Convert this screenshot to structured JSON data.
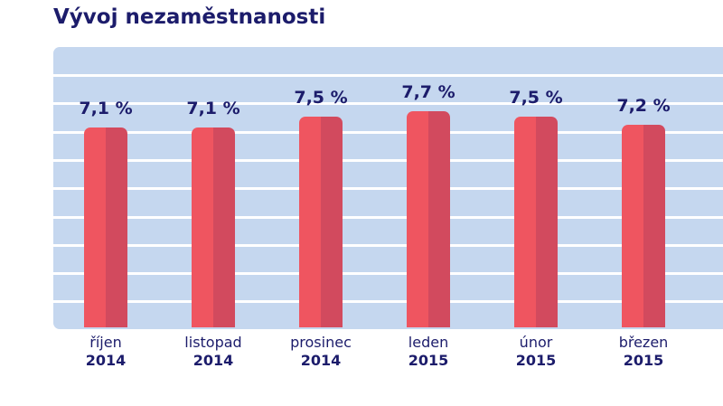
{
  "chart_data": {
    "type": "bar",
    "title": "Vývoj nezaměstnanosti",
    "categories": [
      {
        "month": "říjen",
        "year": "2014"
      },
      {
        "month": "listopad",
        "year": "2014"
      },
      {
        "month": "prosinec",
        "year": "2014"
      },
      {
        "month": "leden",
        "year": "2015"
      },
      {
        "month": "únor",
        "year": "2015"
      },
      {
        "month": "březen",
        "year": "2015"
      }
    ],
    "values": [
      7.1,
      7.1,
      7.5,
      7.7,
      7.5,
      7.2
    ],
    "data_labels": [
      "7,1 %",
      "7,1 %",
      "7,5 %",
      "7,7 %",
      "7,5 %",
      "7,2 %"
    ],
    "unit": "%",
    "grid": true,
    "colors": {
      "bar_light": "#ef5560",
      "bar_dark": "#d24a5e",
      "background": "#c5d7ef",
      "text": "#1c1c6b"
    }
  }
}
